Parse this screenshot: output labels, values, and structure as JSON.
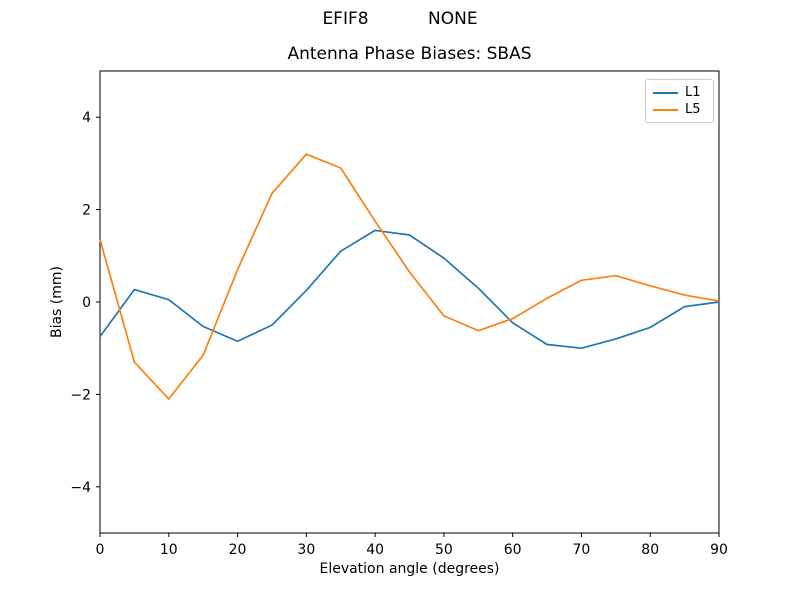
{
  "figure": {
    "suptitle": "EFIF8           NONE",
    "background": "#ffffff",
    "text_color": "#000000",
    "spine_color": "#000000"
  },
  "chart_data": {
    "type": "line",
    "title": "Antenna Phase Biases: SBAS",
    "xlabel": "Elevation angle (degrees)",
    "ylabel": "Bias (mm)",
    "xlim": [
      0,
      90
    ],
    "ylim": [
      -5,
      5
    ],
    "xticks": [
      0,
      10,
      20,
      30,
      40,
      50,
      60,
      70,
      80,
      90
    ],
    "yticks": [
      -4,
      -2,
      0,
      2,
      4
    ],
    "grid": false,
    "legend_position": "upper right",
    "x": [
      0,
      5,
      10,
      15,
      20,
      25,
      30,
      35,
      40,
      45,
      50,
      55,
      60,
      65,
      70,
      75,
      80,
      85,
      90
    ],
    "series": [
      {
        "name": "L1",
        "color": "#1f77b4",
        "values": [
          -0.75,
          0.27,
          0.05,
          -0.53,
          -0.85,
          -0.5,
          0.25,
          1.1,
          1.55,
          1.45,
          0.95,
          0.3,
          -0.45,
          -0.92,
          -1.0,
          -0.8,
          -0.55,
          -0.1,
          0.0
        ]
      },
      {
        "name": "L5",
        "color": "#ff7f0e",
        "values": [
          1.35,
          -1.3,
          -2.1,
          -1.15,
          0.7,
          2.35,
          3.2,
          2.9,
          1.75,
          0.65,
          -0.3,
          -0.62,
          -0.36,
          0.08,
          0.47,
          0.57,
          0.35,
          0.15,
          0.02
        ]
      }
    ]
  }
}
